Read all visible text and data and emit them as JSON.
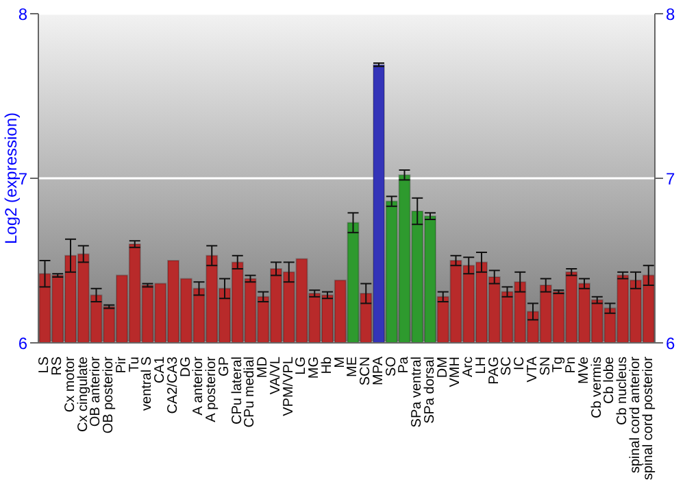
{
  "chart_data": {
    "type": "bar",
    "ylabel": "Log2 (expression)",
    "categories": [
      "LS",
      "RS",
      "Cx motor",
      "Cx cingulate",
      "OB anterior",
      "OB posterior",
      "Pir",
      "Tu",
      "ventral S",
      "CA1",
      "CA2/CA3",
      "DG",
      "A anterior",
      "A posterior",
      "GP",
      "CPu lateral",
      "CPu medial",
      "MD",
      "VA/VL",
      "VPM/VPL",
      "LG",
      "MG",
      "Hb",
      "M",
      "ME",
      "SCN",
      "MPA",
      "SO",
      "Pa",
      "SPa ventral",
      "SPa dorsal",
      "DM",
      "VMH",
      "Arc",
      "LH",
      "PAG",
      "SC",
      "IC",
      "VTA",
      "SN",
      "Tg",
      "Pn",
      "MVe",
      "Cb vermis",
      "Cb lobe",
      "Cb nucleus",
      "spinal cord anterior",
      "spinal cord posterior"
    ],
    "values": [
      6.42,
      6.41,
      6.53,
      6.54,
      6.29,
      6.22,
      6.41,
      6.6,
      6.35,
      6.36,
      6.5,
      6.39,
      6.33,
      6.53,
      6.33,
      6.49,
      6.39,
      6.28,
      6.45,
      6.43,
      6.51,
      6.3,
      6.29,
      6.38,
      6.73,
      6.3,
      7.69,
      6.86,
      7.02,
      6.8,
      6.77,
      6.28,
      6.5,
      6.47,
      6.49,
      6.4,
      6.31,
      6.37,
      6.19,
      6.35,
      6.31,
      6.43,
      6.36,
      6.26,
      6.21,
      6.41,
      6.38,
      6.41
    ],
    "errors": [
      0.08,
      0.01,
      0.1,
      0.05,
      0.04,
      0.01,
      0.0,
      0.02,
      0.01,
      0.0,
      0.0,
      0.0,
      0.04,
      0.06,
      0.06,
      0.04,
      0.02,
      0.03,
      0.04,
      0.06,
      0.0,
      0.02,
      0.02,
      0.0,
      0.06,
      0.06,
      0.01,
      0.03,
      0.03,
      0.08,
      0.02,
      0.03,
      0.03,
      0.05,
      0.06,
      0.04,
      0.03,
      0.06,
      0.05,
      0.04,
      0.01,
      0.02,
      0.03,
      0.02,
      0.03,
      0.02,
      0.05,
      0.06
    ],
    "colors": [
      "#b82a2a",
      "#b82a2a",
      "#b82a2a",
      "#b82a2a",
      "#b82a2a",
      "#b82a2a",
      "#b82a2a",
      "#b82a2a",
      "#b82a2a",
      "#b82a2a",
      "#b82a2a",
      "#b82a2a",
      "#b82a2a",
      "#b82a2a",
      "#b82a2a",
      "#b82a2a",
      "#b82a2a",
      "#b82a2a",
      "#b82a2a",
      "#b82a2a",
      "#b82a2a",
      "#b82a2a",
      "#b82a2a",
      "#b82a2a",
      "#2e9a2e",
      "#b82a2a",
      "#3434b8",
      "#2e9a2e",
      "#2e9a2e",
      "#2e9a2e",
      "#2e9a2e",
      "#b82a2a",
      "#b82a2a",
      "#b82a2a",
      "#b82a2a",
      "#b82a2a",
      "#b82a2a",
      "#b82a2a",
      "#b82a2a",
      "#b82a2a",
      "#b82a2a",
      "#b82a2a",
      "#b82a2a",
      "#b82a2a",
      "#b82a2a",
      "#b82a2a",
      "#b82a2a",
      "#b82a2a"
    ],
    "ylim": [
      6,
      8
    ],
    "yticks": [
      6,
      7,
      8
    ],
    "y2lim": [
      6,
      8
    ],
    "y2ticks": [
      6,
      7,
      8
    ],
    "grid": "y"
  }
}
